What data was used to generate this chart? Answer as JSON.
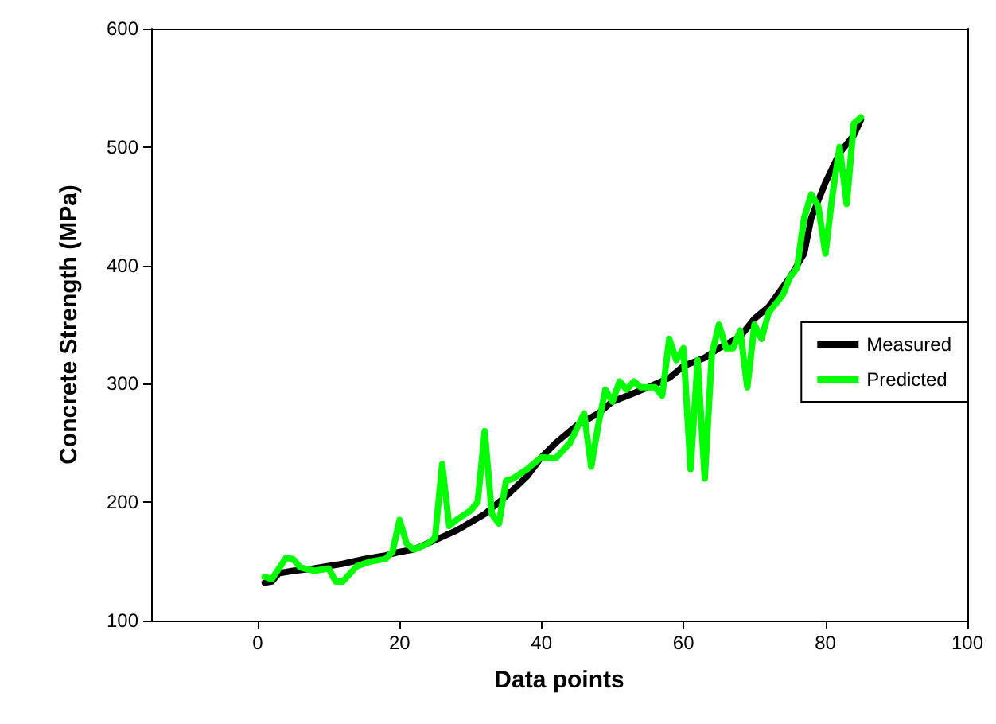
{
  "chart_data": {
    "type": "line",
    "xlabel": "Data points",
    "ylabel": "Concrete Strength (MPa)",
    "xlim": [
      -15,
      100
    ],
    "xticks": [
      0,
      20,
      40,
      60,
      80,
      100
    ],
    "ylim": [
      100,
      600
    ],
    "yticks": [
      100,
      200,
      300,
      400,
      500,
      600
    ],
    "grid": false,
    "legend": "right",
    "marker": "none",
    "line_style": "solid",
    "series": [
      {
        "name": "Measured",
        "color": "#000000",
        "x": [
          1,
          2,
          3,
          5,
          8,
          10,
          12,
          15,
          18,
          20,
          22,
          25,
          28,
          30,
          32,
          35,
          38,
          40,
          42,
          45,
          48,
          50,
          53,
          55,
          58,
          60,
          63,
          65,
          68,
          70,
          72,
          75,
          77,
          78,
          80,
          82,
          84,
          85
        ],
        "values": [
          132,
          133,
          140,
          142,
          144,
          146,
          148,
          152,
          155,
          158,
          160,
          168,
          176,
          183,
          190,
          205,
          222,
          238,
          250,
          265,
          275,
          285,
          292,
          297,
          305,
          315,
          322,
          330,
          340,
          355,
          365,
          390,
          410,
          440,
          470,
          495,
          510,
          523
        ]
      },
      {
        "name": "Predicted",
        "color": "#00ff00",
        "x": [
          1,
          2,
          4,
          5,
          6,
          8,
          10,
          11,
          12,
          14,
          16,
          18,
          19,
          20,
          21,
          22,
          24,
          25,
          26,
          27,
          28,
          30,
          31,
          32,
          33,
          34,
          35,
          36,
          38,
          40,
          42,
          44,
          46,
          47,
          48,
          49,
          50,
          51,
          52,
          53,
          54,
          56,
          57,
          58,
          59,
          60,
          61,
          62,
          63,
          64,
          65,
          66,
          67,
          68,
          69,
          70,
          71,
          72,
          74,
          75,
          76,
          77,
          78,
          79,
          80,
          81,
          82,
          83,
          84,
          85
        ],
        "values": [
          137,
          135,
          153,
          152,
          145,
          142,
          144,
          133,
          133,
          146,
          150,
          152,
          158,
          185,
          165,
          160,
          165,
          170,
          232,
          180,
          185,
          193,
          200,
          260,
          190,
          182,
          218,
          220,
          228,
          238,
          237,
          250,
          275,
          230,
          265,
          295,
          285,
          302,
          295,
          302,
          297,
          297,
          290,
          338,
          320,
          330,
          228,
          320,
          220,
          325,
          350,
          330,
          330,
          345,
          297,
          350,
          338,
          360,
          375,
          390,
          398,
          440,
          460,
          450,
          410,
          460,
          500,
          452,
          520,
          525
        ]
      }
    ]
  }
}
